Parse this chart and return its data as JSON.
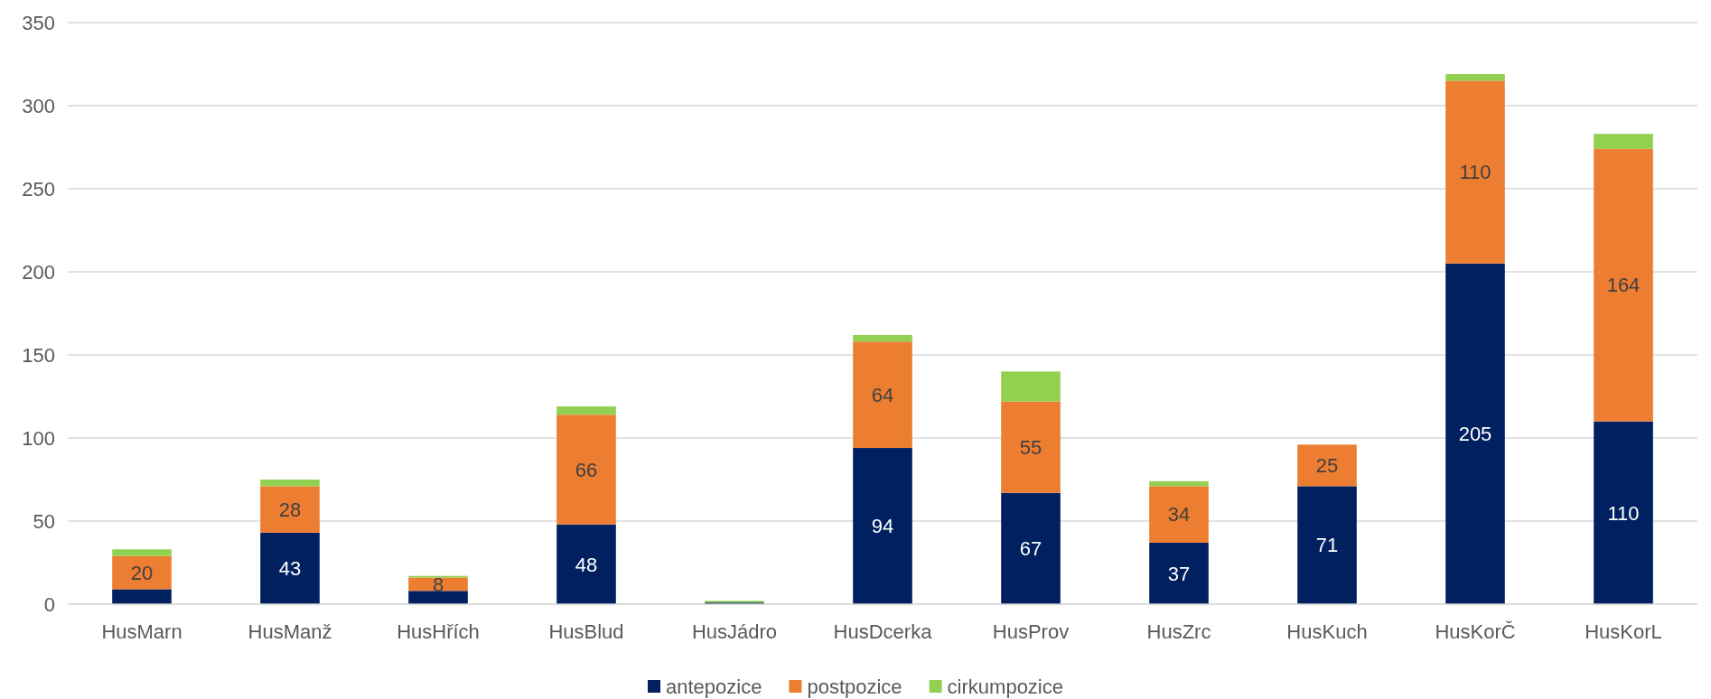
{
  "chart_data": {
    "type": "bar",
    "stacked": true,
    "categories": [
      "HusMarn",
      "HusManž",
      "HusHřích",
      "HusBlud",
      "HusJádro",
      "HusDcerka",
      "HusProv",
      "HusZrc",
      "HusKuch",
      "HusKorČ",
      "HusKorL"
    ],
    "series": [
      {
        "name": "antepozice",
        "color": "#002060",
        "values": [
          9,
          43,
          8,
          48,
          1,
          94,
          67,
          37,
          71,
          205,
          110
        ],
        "value_labels": [
          null,
          "43",
          null,
          "48",
          null,
          "94",
          "67",
          "37",
          "71",
          "205",
          "110"
        ]
      },
      {
        "name": "postpozice",
        "color": "#ed7d31",
        "values": [
          20,
          28,
          8,
          66,
          0,
          64,
          55,
          34,
          25,
          110,
          164
        ],
        "value_labels": [
          "20",
          "28",
          "8",
          "66",
          null,
          "64",
          "55",
          "34",
          "25",
          "110",
          "164"
        ]
      },
      {
        "name": "cirkumpozice",
        "color": "#92d050",
        "values": [
          4,
          4,
          1,
          5,
          1,
          4,
          18,
          3,
          0,
          4,
          9
        ]
      }
    ],
    "ylim": [
      0,
      350
    ],
    "yticks": [
      0,
      50,
      100,
      150,
      200,
      250,
      300,
      350
    ],
    "grid": "y",
    "legend": "bottom"
  }
}
